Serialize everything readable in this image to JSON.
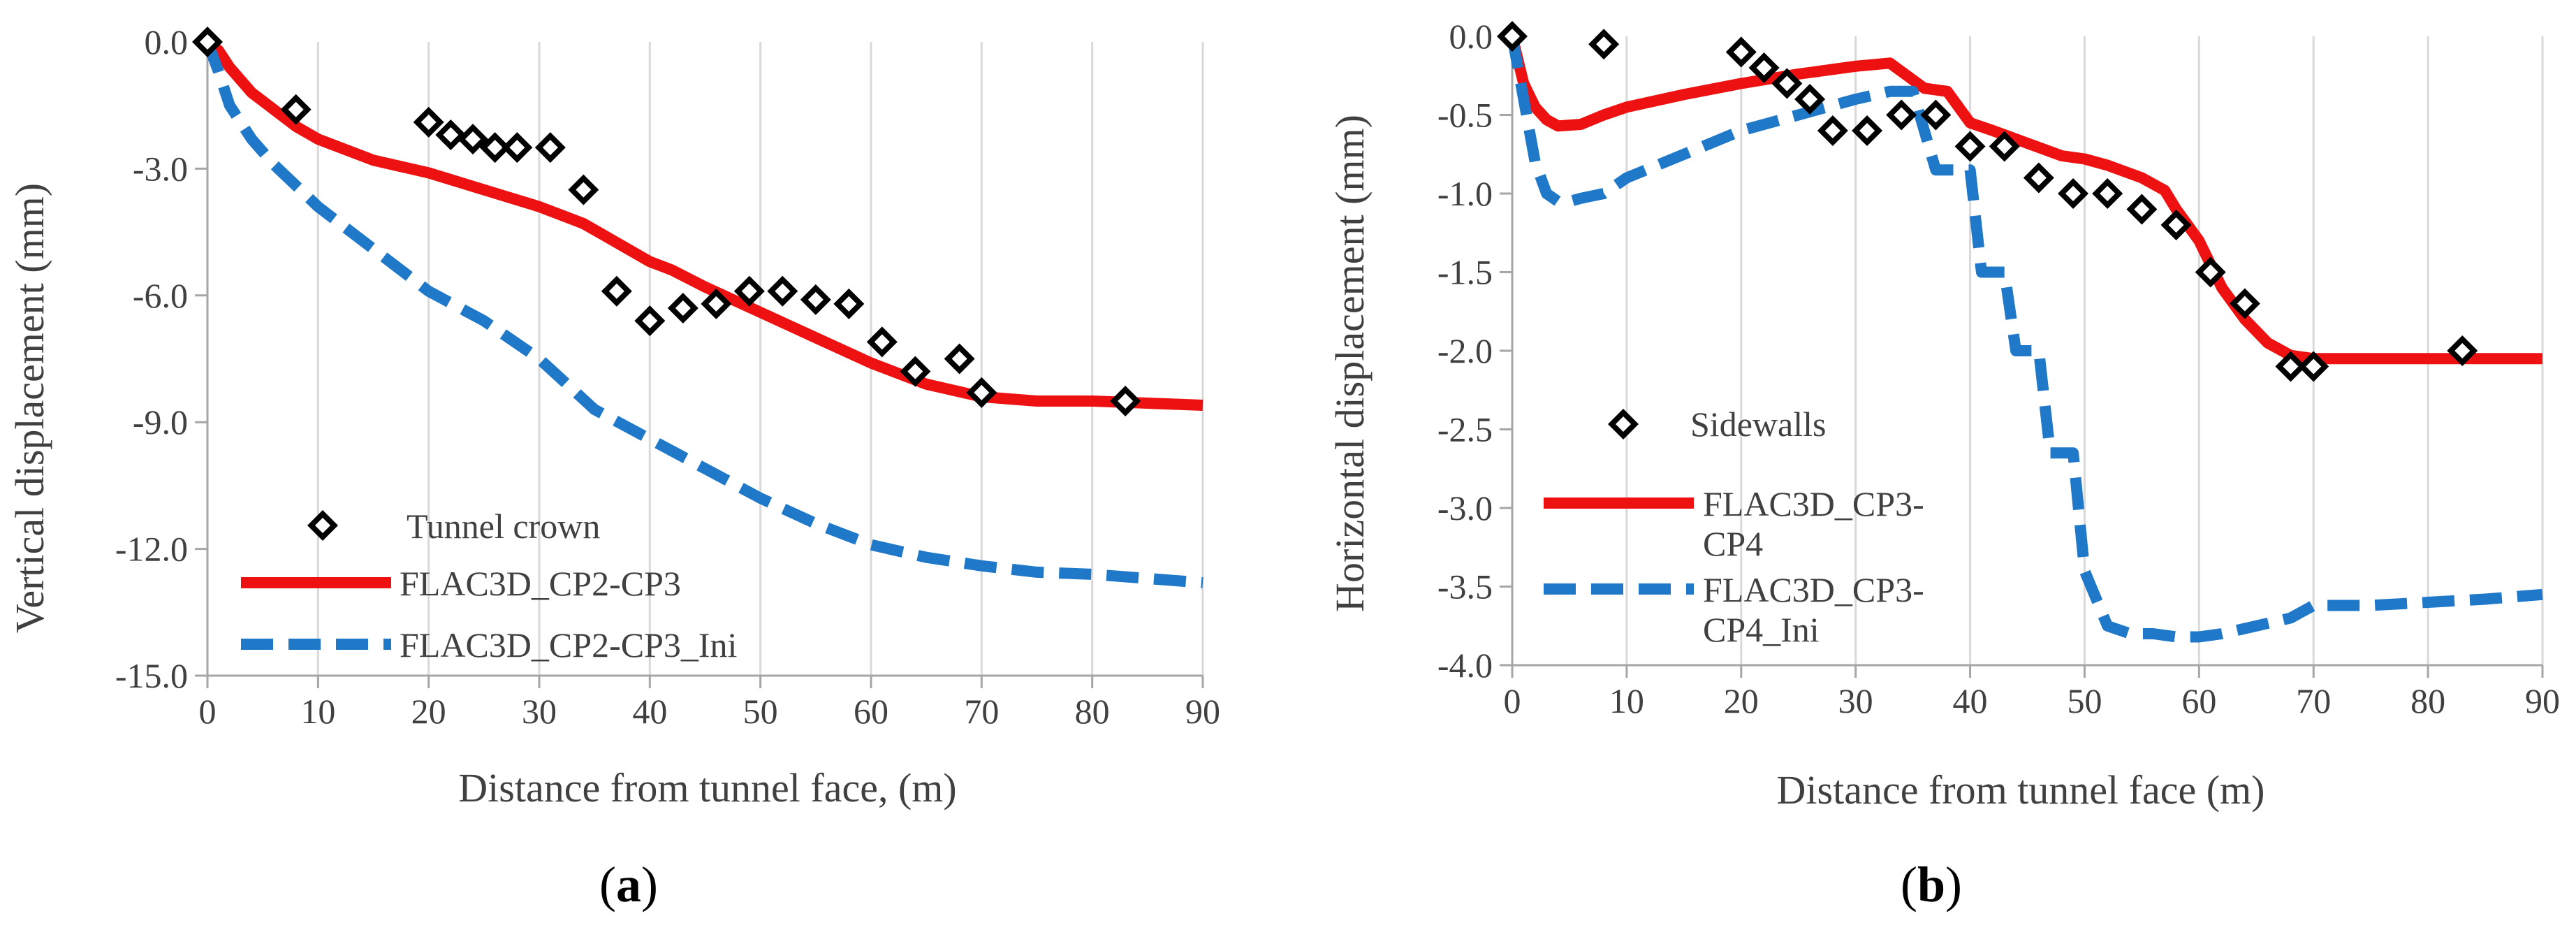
{
  "chart_data": [
    {
      "type": "line",
      "panel_label": "(a)",
      "panel_letter": "a",
      "xlabel": "Distance from tunnel face, (m)",
      "ylabel": "Vertical displacement (mm)",
      "xlim": [
        0,
        90
      ],
      "ylim": [
        -15,
        0
      ],
      "xticks": [
        0,
        10,
        20,
        30,
        40,
        50,
        60,
        70,
        80,
        90
      ],
      "yticks": [
        0,
        -3,
        -6,
        -9,
        -12,
        -15
      ],
      "ytick_labels": [
        "0.0",
        "-3.0",
        "-6.0",
        "-9.0",
        "-12.0",
        "-15.0"
      ],
      "grid": "vertical",
      "legend_position": "bottom-left",
      "series": [
        {
          "name": "Tunnel crown",
          "style": "markers",
          "x": [
            0,
            8,
            20,
            22,
            24,
            26,
            28,
            31,
            34,
            37,
            40,
            43,
            46,
            49,
            52,
            55,
            58,
            61,
            64,
            68,
            70,
            83
          ],
          "y": [
            0,
            -1.6,
            -1.9,
            -2.2,
            -2.3,
            -2.5,
            -2.5,
            -2.5,
            -3.5,
            -5.9,
            -6.6,
            -6.3,
            -6.2,
            -5.9,
            -5.9,
            -6.1,
            -6.2,
            -7.1,
            -7.8,
            -7.5,
            -8.3,
            -8.5
          ]
        },
        {
          "name": "FLAC3D_CP2-CP3",
          "style": "solid",
          "color": "#ee1111",
          "x": [
            0,
            1,
            2,
            4,
            6,
            8,
            10,
            15,
            20,
            25,
            30,
            32,
            34,
            36,
            38,
            40,
            42,
            45,
            50,
            55,
            60,
            65,
            70,
            75,
            80,
            85,
            90
          ],
          "y": [
            0,
            -0.2,
            -0.6,
            -1.2,
            -1.6,
            -2.0,
            -2.3,
            -2.8,
            -3.1,
            -3.5,
            -3.9,
            -4.1,
            -4.3,
            -4.6,
            -4.9,
            -5.2,
            -5.4,
            -5.8,
            -6.4,
            -7.0,
            -7.6,
            -8.1,
            -8.4,
            -8.5,
            -8.5,
            -8.55,
            -8.6
          ]
        },
        {
          "name": "FLAC3D_CP2-CP3_Ini",
          "style": "dashed",
          "color": "#1f78c8",
          "x": [
            0,
            1,
            2,
            4,
            6,
            8,
            10,
            15,
            20,
            25,
            30,
            35,
            40,
            45,
            50,
            55,
            60,
            65,
            70,
            75,
            80,
            85,
            90
          ],
          "y": [
            0,
            -0.7,
            -1.5,
            -2.3,
            -2.9,
            -3.4,
            -3.9,
            -4.9,
            -5.9,
            -6.6,
            -7.5,
            -8.7,
            -9.4,
            -10.1,
            -10.8,
            -11.4,
            -11.9,
            -12.2,
            -12.4,
            -12.55,
            -12.6,
            -12.7,
            -12.8
          ]
        }
      ]
    },
    {
      "type": "line",
      "panel_label": "(b)",
      "panel_letter": "b",
      "xlabel": "Distance from tunnel face (m)",
      "ylabel": "Horizontal displacement (mm)",
      "xlim": [
        0,
        90
      ],
      "ylim": [
        -4,
        0
      ],
      "xticks": [
        0,
        10,
        20,
        30,
        40,
        50,
        60,
        70,
        80,
        90
      ],
      "yticks": [
        0,
        -0.5,
        -1,
        -1.5,
        -2,
        -2.5,
        -3,
        -3.5,
        -4
      ],
      "ytick_labels": [
        "0.0",
        "-0.5",
        "-1.0",
        "-1.5",
        "-2.0",
        "-2.5",
        "-3.0",
        "-3.5",
        "-4.0"
      ],
      "grid": "vertical",
      "legend_position": "center-left",
      "series": [
        {
          "name": "Sidewalls",
          "style": "markers",
          "x": [
            0,
            8,
            20,
            22,
            24,
            26,
            28,
            31,
            34,
            37,
            40,
            43,
            46,
            49,
            52,
            55,
            58,
            61,
            64,
            68,
            70,
            83
          ],
          "y": [
            0,
            -0.05,
            -0.1,
            -0.2,
            -0.3,
            -0.4,
            -0.6,
            -0.6,
            -0.5,
            -0.5,
            -0.7,
            -0.7,
            -0.9,
            -1.0,
            -1.0,
            -1.1,
            -1.2,
            -1.5,
            -1.7,
            -2.1,
            -2.1,
            -2.0
          ]
        },
        {
          "name": "FLAC3D_CP3-CP4",
          "legend_lines": [
            "FLAC3D_CP3-",
            "CP4"
          ],
          "style": "solid",
          "color": "#ee1111",
          "x": [
            0,
            1,
            2,
            3,
            4,
            6,
            8,
            10,
            15,
            20,
            25,
            30,
            33,
            36,
            38,
            40,
            42,
            45,
            48,
            50,
            52,
            55,
            57,
            58,
            60,
            62,
            64,
            66,
            68,
            70,
            75,
            80,
            85,
            90
          ],
          "y": [
            0,
            -0.3,
            -0.45,
            -0.53,
            -0.57,
            -0.56,
            -0.5,
            -0.45,
            -0.37,
            -0.3,
            -0.24,
            -0.19,
            -0.17,
            -0.33,
            -0.35,
            -0.55,
            -0.6,
            -0.68,
            -0.76,
            -0.78,
            -0.82,
            -0.9,
            -0.98,
            -1.1,
            -1.3,
            -1.6,
            -1.8,
            -1.95,
            -2.03,
            -2.05,
            -2.05,
            -2.05,
            -2.05,
            -2.05
          ]
        },
        {
          "name": "FLAC3D_CP3-CP4_Ini",
          "legend_lines": [
            "FLAC3D_CP3-",
            "CP4_Ini"
          ],
          "style": "dashed",
          "color": "#1f78c8",
          "x": [
            0,
            1,
            2,
            3,
            4,
            5,
            6,
            8,
            10,
            15,
            20,
            25,
            30,
            33,
            35,
            37,
            40,
            41,
            43,
            44,
            46,
            47,
            49,
            50,
            52,
            54,
            56,
            58,
            60,
            62,
            65,
            68,
            70,
            75,
            80,
            85,
            90
          ],
          "y": [
            0,
            -0.4,
            -0.8,
            -1.0,
            -1.05,
            -1.05,
            -1.03,
            -1.0,
            -0.9,
            -0.75,
            -0.6,
            -0.5,
            -0.4,
            -0.35,
            -0.35,
            -0.85,
            -0.85,
            -1.5,
            -1.5,
            -2.0,
            -2.0,
            -2.65,
            -2.65,
            -3.4,
            -3.75,
            -3.8,
            -3.8,
            -3.82,
            -3.82,
            -3.8,
            -3.75,
            -3.7,
            -3.62,
            -3.62,
            -3.6,
            -3.58,
            -3.55
          ]
        }
      ]
    }
  ]
}
